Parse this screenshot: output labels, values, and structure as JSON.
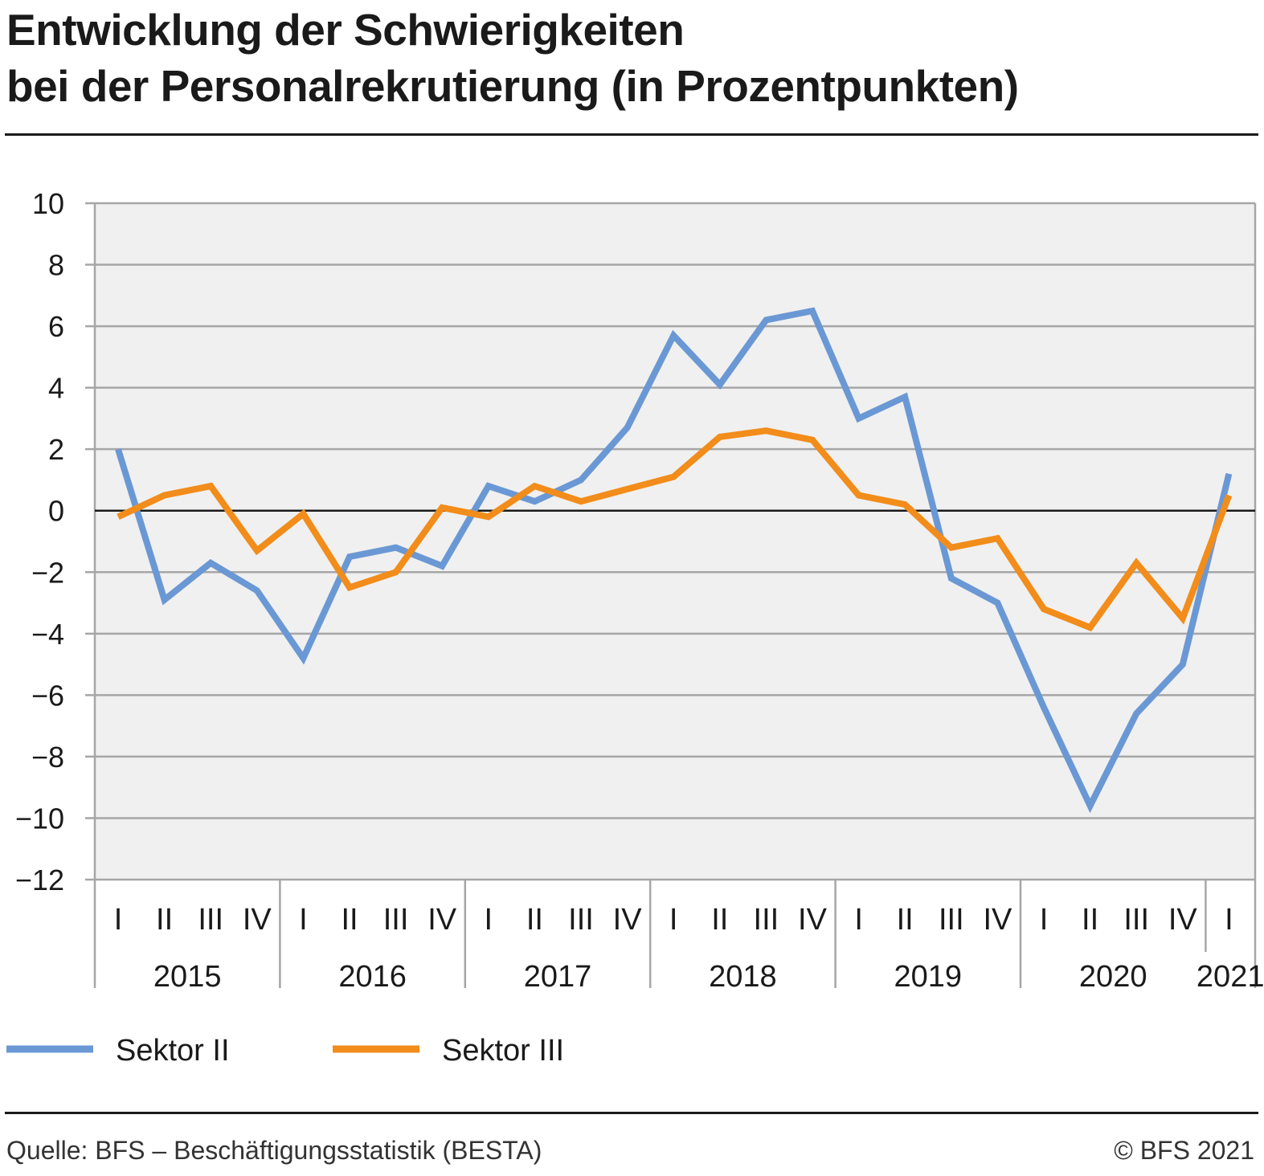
{
  "title": {
    "line1": "Entwicklung der Schwierigkeiten",
    "line2": "bei der Personalrekrutierung (in Prozentpunkten)"
  },
  "footer": {
    "source": "Quelle: BFS – Beschäftigungsstatistik (BESTA)",
    "copyright": "© BFS 2021"
  },
  "chart_data": {
    "type": "line",
    "title": "Entwicklung der Schwierigkeiten bei der Personalrekrutierung (in Prozentpunkten)",
    "ylim": [
      -12,
      10
    ],
    "yticks": [
      10,
      8,
      6,
      4,
      2,
      0,
      -2,
      -4,
      -6,
      -8,
      -10,
      -12
    ],
    "ytick_labels": [
      "10",
      "8",
      "6",
      "4",
      "2",
      "0",
      "−2",
      "−4",
      "−6",
      "−8",
      "−10",
      "−12"
    ],
    "grid": true,
    "zero_line": true,
    "legend_position": "bottom-left",
    "quarter_labels": [
      "I",
      "II",
      "III",
      "IV",
      "I",
      "II",
      "III",
      "IV",
      "I",
      "II",
      "III",
      "IV",
      "I",
      "II",
      "III",
      "IV",
      "I",
      "II",
      "III",
      "IV",
      "I",
      "II",
      "III",
      "IV",
      "I"
    ],
    "years": [
      {
        "label": "2015",
        "quarters": 4
      },
      {
        "label": "2016",
        "quarters": 4
      },
      {
        "label": "2017",
        "quarters": 4
      },
      {
        "label": "2018",
        "quarters": 4
      },
      {
        "label": "2019",
        "quarters": 4
      },
      {
        "label": "2020",
        "quarters": 4
      },
      {
        "label": "2021",
        "quarters": 1
      }
    ],
    "series": [
      {
        "name": "Sektor II",
        "color": "#6a98d4",
        "values": [
          2.0,
          -2.9,
          -1.7,
          -2.6,
          -4.8,
          -1.5,
          -1.2,
          -1.8,
          0.8,
          0.3,
          1.0,
          2.7,
          5.7,
          4.1,
          6.2,
          6.5,
          3.0,
          3.7,
          -2.2,
          -3.0,
          -6.4,
          -9.6,
          -6.6,
          -5.0,
          1.2
        ]
      },
      {
        "name": "Sektor III",
        "color": "#f28c1a",
        "values": [
          -0.2,
          0.5,
          0.8,
          -1.3,
          -0.1,
          -2.5,
          -2.0,
          0.1,
          -0.2,
          0.8,
          0.3,
          0.7,
          1.1,
          2.4,
          2.6,
          2.3,
          0.5,
          0.2,
          -1.2,
          -0.9,
          -3.2,
          -3.8,
          -1.7,
          -3.5,
          0.5
        ]
      }
    ]
  }
}
